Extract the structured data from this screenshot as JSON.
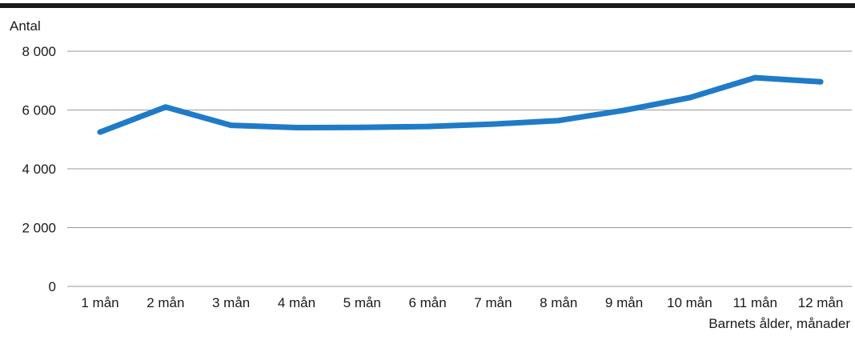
{
  "chart_data": {
    "type": "line",
    "title": "",
    "ylabel": "Antal",
    "xlabel": "Barnets ålder, månader",
    "categories": [
      "1 mån",
      "2 mån",
      "3 mån",
      "4 mån",
      "5 mån",
      "6 mån",
      "7 mån",
      "8 mån",
      "9 mån",
      "10 mån",
      "11 mån",
      "12 mån"
    ],
    "series": [
      {
        "values": [
          5250,
          6100,
          5480,
          5400,
          5410,
          5440,
          5520,
          5640,
          5990,
          6420,
          7100,
          6960
        ],
        "color": "#1f7bc8"
      }
    ],
    "ylim": [
      0,
      8000
    ],
    "yticks": [
      0,
      2000,
      4000,
      6000,
      8000
    ],
    "ytick_labels": [
      "0",
      "2 000",
      "4 000",
      "6 000",
      "8 000"
    ],
    "grid": true,
    "legend": "none",
    "colors": {
      "top_rule": "#1a1a1a",
      "grid": "#9a9a9a",
      "text": "#1a1a1a"
    }
  }
}
